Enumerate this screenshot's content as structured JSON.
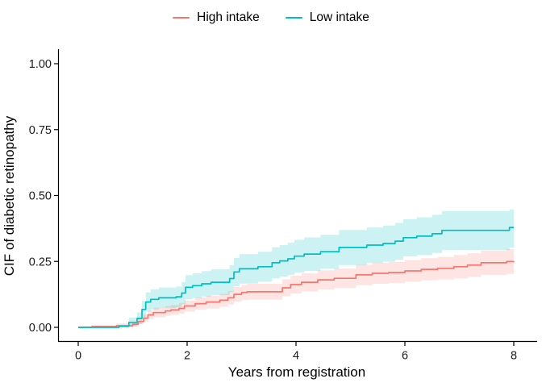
{
  "colors": {
    "background": "#FFFFFF",
    "axis_line": "#000000",
    "tick_text": "#1A1A1A",
    "title_text": "#000000"
  },
  "chart_data": {
    "type": "line",
    "curve_style": "step",
    "title": "",
    "xlabel": "Years from registration",
    "ylabel": "CIF of diabetic retinopathy",
    "xlim": [
      0,
      8
    ],
    "ylim": [
      0,
      1
    ],
    "grid": false,
    "legend_position": "top-center",
    "band_opacity": 0.2,
    "x_ticks": {
      "values": [
        0,
        2,
        4,
        6,
        8
      ],
      "labels": [
        "0",
        "2",
        "4",
        "6",
        "8"
      ]
    },
    "y_ticks": {
      "values": [
        0,
        0.25,
        0.5,
        0.75,
        1
      ],
      "labels": [
        "0.00",
        "0.25",
        "0.50",
        "0.75",
        "1.00"
      ]
    },
    "point_format": [
      "years",
      "estimate",
      "ci_lower",
      "ci_upper"
    ],
    "series": [
      {
        "name": "High intake",
        "color": "#F8766D",
        "points": [
          [
            0,
            0,
            0,
            0
          ],
          [
            0.25,
            0.003,
            0,
            0.007
          ],
          [
            0.7,
            0.006,
            0,
            0.015
          ],
          [
            1.0,
            0.012,
            0.003,
            0.021
          ],
          [
            1.1,
            0.022,
            0.011,
            0.033
          ],
          [
            1.2,
            0.035,
            0.021,
            0.049
          ],
          [
            1.28,
            0.047,
            0.031,
            0.063
          ],
          [
            1.38,
            0.056,
            0.038,
            0.074
          ],
          [
            1.6,
            0.062,
            0.043,
            0.081
          ],
          [
            1.7,
            0.066,
            0.047,
            0.085
          ],
          [
            1.85,
            0.072,
            0.052,
            0.092
          ],
          [
            1.95,
            0.081,
            0.06,
            0.102
          ],
          [
            2.15,
            0.09,
            0.067,
            0.113
          ],
          [
            2.35,
            0.096,
            0.072,
            0.12
          ],
          [
            2.6,
            0.103,
            0.078,
            0.127
          ],
          [
            2.75,
            0.112,
            0.086,
            0.138
          ],
          [
            2.86,
            0.125,
            0.097,
            0.153
          ],
          [
            3.0,
            0.132,
            0.103,
            0.161
          ],
          [
            3.1,
            0.135,
            0.105,
            0.165
          ],
          [
            3.75,
            0.15,
            0.118,
            0.182
          ],
          [
            3.9,
            0.162,
            0.128,
            0.196
          ],
          [
            4.1,
            0.171,
            0.136,
            0.205
          ],
          [
            4.4,
            0.18,
            0.144,
            0.216
          ],
          [
            4.7,
            0.186,
            0.149,
            0.223
          ],
          [
            5.1,
            0.199,
            0.16,
            0.238
          ],
          [
            5.4,
            0.205,
            0.165,
            0.245
          ],
          [
            5.7,
            0.208,
            0.168,
            0.248
          ],
          [
            6.0,
            0.214,
            0.173,
            0.255
          ],
          [
            6.3,
            0.22,
            0.178,
            0.262
          ],
          [
            6.6,
            0.224,
            0.181,
            0.267
          ],
          [
            6.9,
            0.23,
            0.186,
            0.274
          ],
          [
            7.15,
            0.236,
            0.191,
            0.281
          ],
          [
            7.4,
            0.245,
            0.199,
            0.291
          ],
          [
            7.87,
            0.25,
            0.203,
            0.297
          ],
          [
            8.0,
            0.251,
            0.204,
            0.298
          ]
        ]
      },
      {
        "name": "Low intake",
        "color": "#00BFC4",
        "points": [
          [
            0,
            0,
            0,
            0
          ],
          [
            0.75,
            0.004,
            0,
            0.01
          ],
          [
            0.93,
            0.019,
            0.003,
            0.037
          ],
          [
            1.08,
            0.034,
            0.012,
            0.057
          ],
          [
            1.17,
            0.068,
            0.038,
            0.1
          ],
          [
            1.24,
            0.096,
            0.06,
            0.133
          ],
          [
            1.33,
            0.106,
            0.068,
            0.144
          ],
          [
            1.48,
            0.112,
            0.073,
            0.151
          ],
          [
            1.8,
            0.116,
            0.076,
            0.155
          ],
          [
            1.9,
            0.13,
            0.088,
            0.172
          ],
          [
            1.97,
            0.152,
            0.106,
            0.198
          ],
          [
            2.1,
            0.158,
            0.111,
            0.205
          ],
          [
            2.27,
            0.165,
            0.117,
            0.213
          ],
          [
            2.44,
            0.171,
            0.122,
            0.22
          ],
          [
            2.78,
            0.185,
            0.134,
            0.236
          ],
          [
            2.86,
            0.21,
            0.156,
            0.264
          ],
          [
            2.96,
            0.222,
            0.166,
            0.278
          ],
          [
            3.3,
            0.23,
            0.173,
            0.287
          ],
          [
            3.56,
            0.245,
            0.186,
            0.304
          ],
          [
            3.7,
            0.252,
            0.192,
            0.312
          ],
          [
            3.85,
            0.26,
            0.199,
            0.321
          ],
          [
            3.97,
            0.27,
            0.207,
            0.332
          ],
          [
            4.15,
            0.278,
            0.214,
            0.341
          ],
          [
            4.45,
            0.287,
            0.222,
            0.351
          ],
          [
            4.79,
            0.303,
            0.236,
            0.369
          ],
          [
            5.3,
            0.312,
            0.244,
            0.379
          ],
          [
            5.6,
            0.318,
            0.249,
            0.386
          ],
          [
            5.82,
            0.327,
            0.257,
            0.396
          ],
          [
            5.97,
            0.34,
            0.269,
            0.41
          ],
          [
            6.22,
            0.346,
            0.274,
            0.417
          ],
          [
            6.5,
            0.355,
            0.282,
            0.427
          ],
          [
            6.68,
            0.368,
            0.293,
            0.441
          ],
          [
            7.86,
            0.368,
            0.293,
            0.441
          ],
          [
            7.92,
            0.379,
            0.302,
            0.447
          ],
          [
            8.0,
            0.379,
            0.302,
            0.447
          ]
        ]
      }
    ]
  }
}
